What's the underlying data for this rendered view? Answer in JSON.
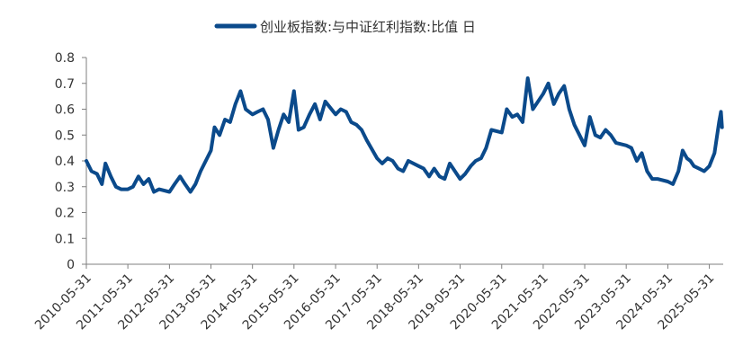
{
  "chart_data": {
    "type": "line",
    "title": "",
    "xlabel": "",
    "ylabel": "",
    "legend": {
      "position": "top-center"
    },
    "grid": false,
    "ylim": [
      0,
      0.8
    ],
    "y_ticks": [
      "0",
      "0.1",
      "0.2",
      "0.3",
      "0.4",
      "0.5",
      "0.6",
      "0.7",
      "0.8"
    ],
    "x_ticks": [
      "2010-05-31",
      "2011-05-31",
      "2012-05-31",
      "2013-05-31",
      "2014-05-31",
      "2015-05-31",
      "2016-05-31",
      "2017-05-31",
      "2018-05-31",
      "2019-05-31",
      "2020-05-31",
      "2021-05-31",
      "2022-05-31",
      "2023-05-31",
      "2024-05-31",
      "2025-05-31"
    ],
    "series": [
      {
        "name": "创业板指数:与中证红利指数:比值  日",
        "color": "#0b4a8b",
        "points": [
          [
            "2010-05-31",
            0.4
          ],
          [
            "2010-07-15",
            0.36
          ],
          [
            "2010-09-01",
            0.35
          ],
          [
            "2010-10-15",
            0.31
          ],
          [
            "2010-11-15",
            0.39
          ],
          [
            "2011-01-01",
            0.34
          ],
          [
            "2011-02-15",
            0.3
          ],
          [
            "2011-04-01",
            0.29
          ],
          [
            "2011-05-31",
            0.29
          ],
          [
            "2011-07-15",
            0.3
          ],
          [
            "2011-09-01",
            0.34
          ],
          [
            "2011-10-15",
            0.31
          ],
          [
            "2011-12-01",
            0.33
          ],
          [
            "2012-01-15",
            0.28
          ],
          [
            "2012-03-01",
            0.29
          ],
          [
            "2012-05-31",
            0.28
          ],
          [
            "2012-07-15",
            0.31
          ],
          [
            "2012-09-01",
            0.34
          ],
          [
            "2012-10-15",
            0.31
          ],
          [
            "2012-12-01",
            0.28
          ],
          [
            "2013-01-15",
            0.31
          ],
          [
            "2013-03-01",
            0.36
          ],
          [
            "2013-05-31",
            0.44
          ],
          [
            "2013-07-01",
            0.53
          ],
          [
            "2013-08-15",
            0.5
          ],
          [
            "2013-10-01",
            0.56
          ],
          [
            "2013-11-15",
            0.55
          ],
          [
            "2014-01-01",
            0.62
          ],
          [
            "2014-02-15",
            0.67
          ],
          [
            "2014-04-01",
            0.6
          ],
          [
            "2014-05-31",
            0.58
          ],
          [
            "2014-07-15",
            0.59
          ],
          [
            "2014-09-01",
            0.6
          ],
          [
            "2014-10-15",
            0.56
          ],
          [
            "2014-12-01",
            0.45
          ],
          [
            "2015-01-15",
            0.52
          ],
          [
            "2015-03-01",
            0.58
          ],
          [
            "2015-04-15",
            0.55
          ],
          [
            "2015-05-31",
            0.67
          ],
          [
            "2015-07-10",
            0.52
          ],
          [
            "2015-08-25",
            0.53
          ],
          [
            "2015-10-15",
            0.58
          ],
          [
            "2015-12-01",
            0.62
          ],
          [
            "2016-01-15",
            0.56
          ],
          [
            "2016-03-01",
            0.63
          ],
          [
            "2016-05-31",
            0.58
          ],
          [
            "2016-07-15",
            0.6
          ],
          [
            "2016-09-01",
            0.59
          ],
          [
            "2016-10-15",
            0.55
          ],
          [
            "2016-12-01",
            0.54
          ],
          [
            "2017-01-15",
            0.52
          ],
          [
            "2017-03-01",
            0.48
          ],
          [
            "2017-05-31",
            0.41
          ],
          [
            "2017-07-15",
            0.39
          ],
          [
            "2017-09-01",
            0.41
          ],
          [
            "2017-10-15",
            0.4
          ],
          [
            "2017-12-01",
            0.37
          ],
          [
            "2018-01-15",
            0.36
          ],
          [
            "2018-03-01",
            0.4
          ],
          [
            "2018-05-31",
            0.38
          ],
          [
            "2018-07-15",
            0.37
          ],
          [
            "2018-09-01",
            0.34
          ],
          [
            "2018-10-15",
            0.37
          ],
          [
            "2018-12-01",
            0.34
          ],
          [
            "2019-01-15",
            0.33
          ],
          [
            "2019-03-01",
            0.39
          ],
          [
            "2019-05-31",
            0.33
          ],
          [
            "2019-07-15",
            0.35
          ],
          [
            "2019-09-01",
            0.38
          ],
          [
            "2019-10-15",
            0.4
          ],
          [
            "2019-12-01",
            0.41
          ],
          [
            "2020-01-15",
            0.45
          ],
          [
            "2020-03-01",
            0.52
          ],
          [
            "2020-05-31",
            0.51
          ],
          [
            "2020-07-15",
            0.6
          ],
          [
            "2020-09-01",
            0.57
          ],
          [
            "2020-10-15",
            0.58
          ],
          [
            "2020-12-01",
            0.55
          ],
          [
            "2021-01-15",
            0.72
          ],
          [
            "2021-03-01",
            0.6
          ],
          [
            "2021-05-31",
            0.66
          ],
          [
            "2021-07-15",
            0.7
          ],
          [
            "2021-09-01",
            0.62
          ],
          [
            "2021-10-15",
            0.66
          ],
          [
            "2021-12-01",
            0.69
          ],
          [
            "2022-01-15",
            0.6
          ],
          [
            "2022-03-01",
            0.54
          ],
          [
            "2022-05-31",
            0.46
          ],
          [
            "2022-07-15",
            0.57
          ],
          [
            "2022-09-01",
            0.5
          ],
          [
            "2022-10-15",
            0.49
          ],
          [
            "2022-12-01",
            0.52
          ],
          [
            "2023-01-15",
            0.5
          ],
          [
            "2023-03-01",
            0.47
          ],
          [
            "2023-05-31",
            0.46
          ],
          [
            "2023-07-15",
            0.45
          ],
          [
            "2023-09-01",
            0.4
          ],
          [
            "2023-10-15",
            0.43
          ],
          [
            "2023-12-01",
            0.36
          ],
          [
            "2024-01-15",
            0.33
          ],
          [
            "2024-03-01",
            0.33
          ],
          [
            "2024-05-31",
            0.32
          ],
          [
            "2024-07-15",
            0.31
          ],
          [
            "2024-09-01",
            0.36
          ],
          [
            "2024-10-08",
            0.44
          ],
          [
            "2024-11-15",
            0.41
          ],
          [
            "2024-12-15",
            0.4
          ],
          [
            "2025-01-15",
            0.38
          ],
          [
            "2025-03-01",
            0.37
          ],
          [
            "2025-04-15",
            0.36
          ],
          [
            "2025-05-31",
            0.38
          ],
          [
            "2025-07-15",
            0.43
          ],
          [
            "2025-08-25",
            0.55
          ],
          [
            "2025-09-10",
            0.59
          ],
          [
            "2025-09-20",
            0.53
          ]
        ]
      }
    ]
  }
}
